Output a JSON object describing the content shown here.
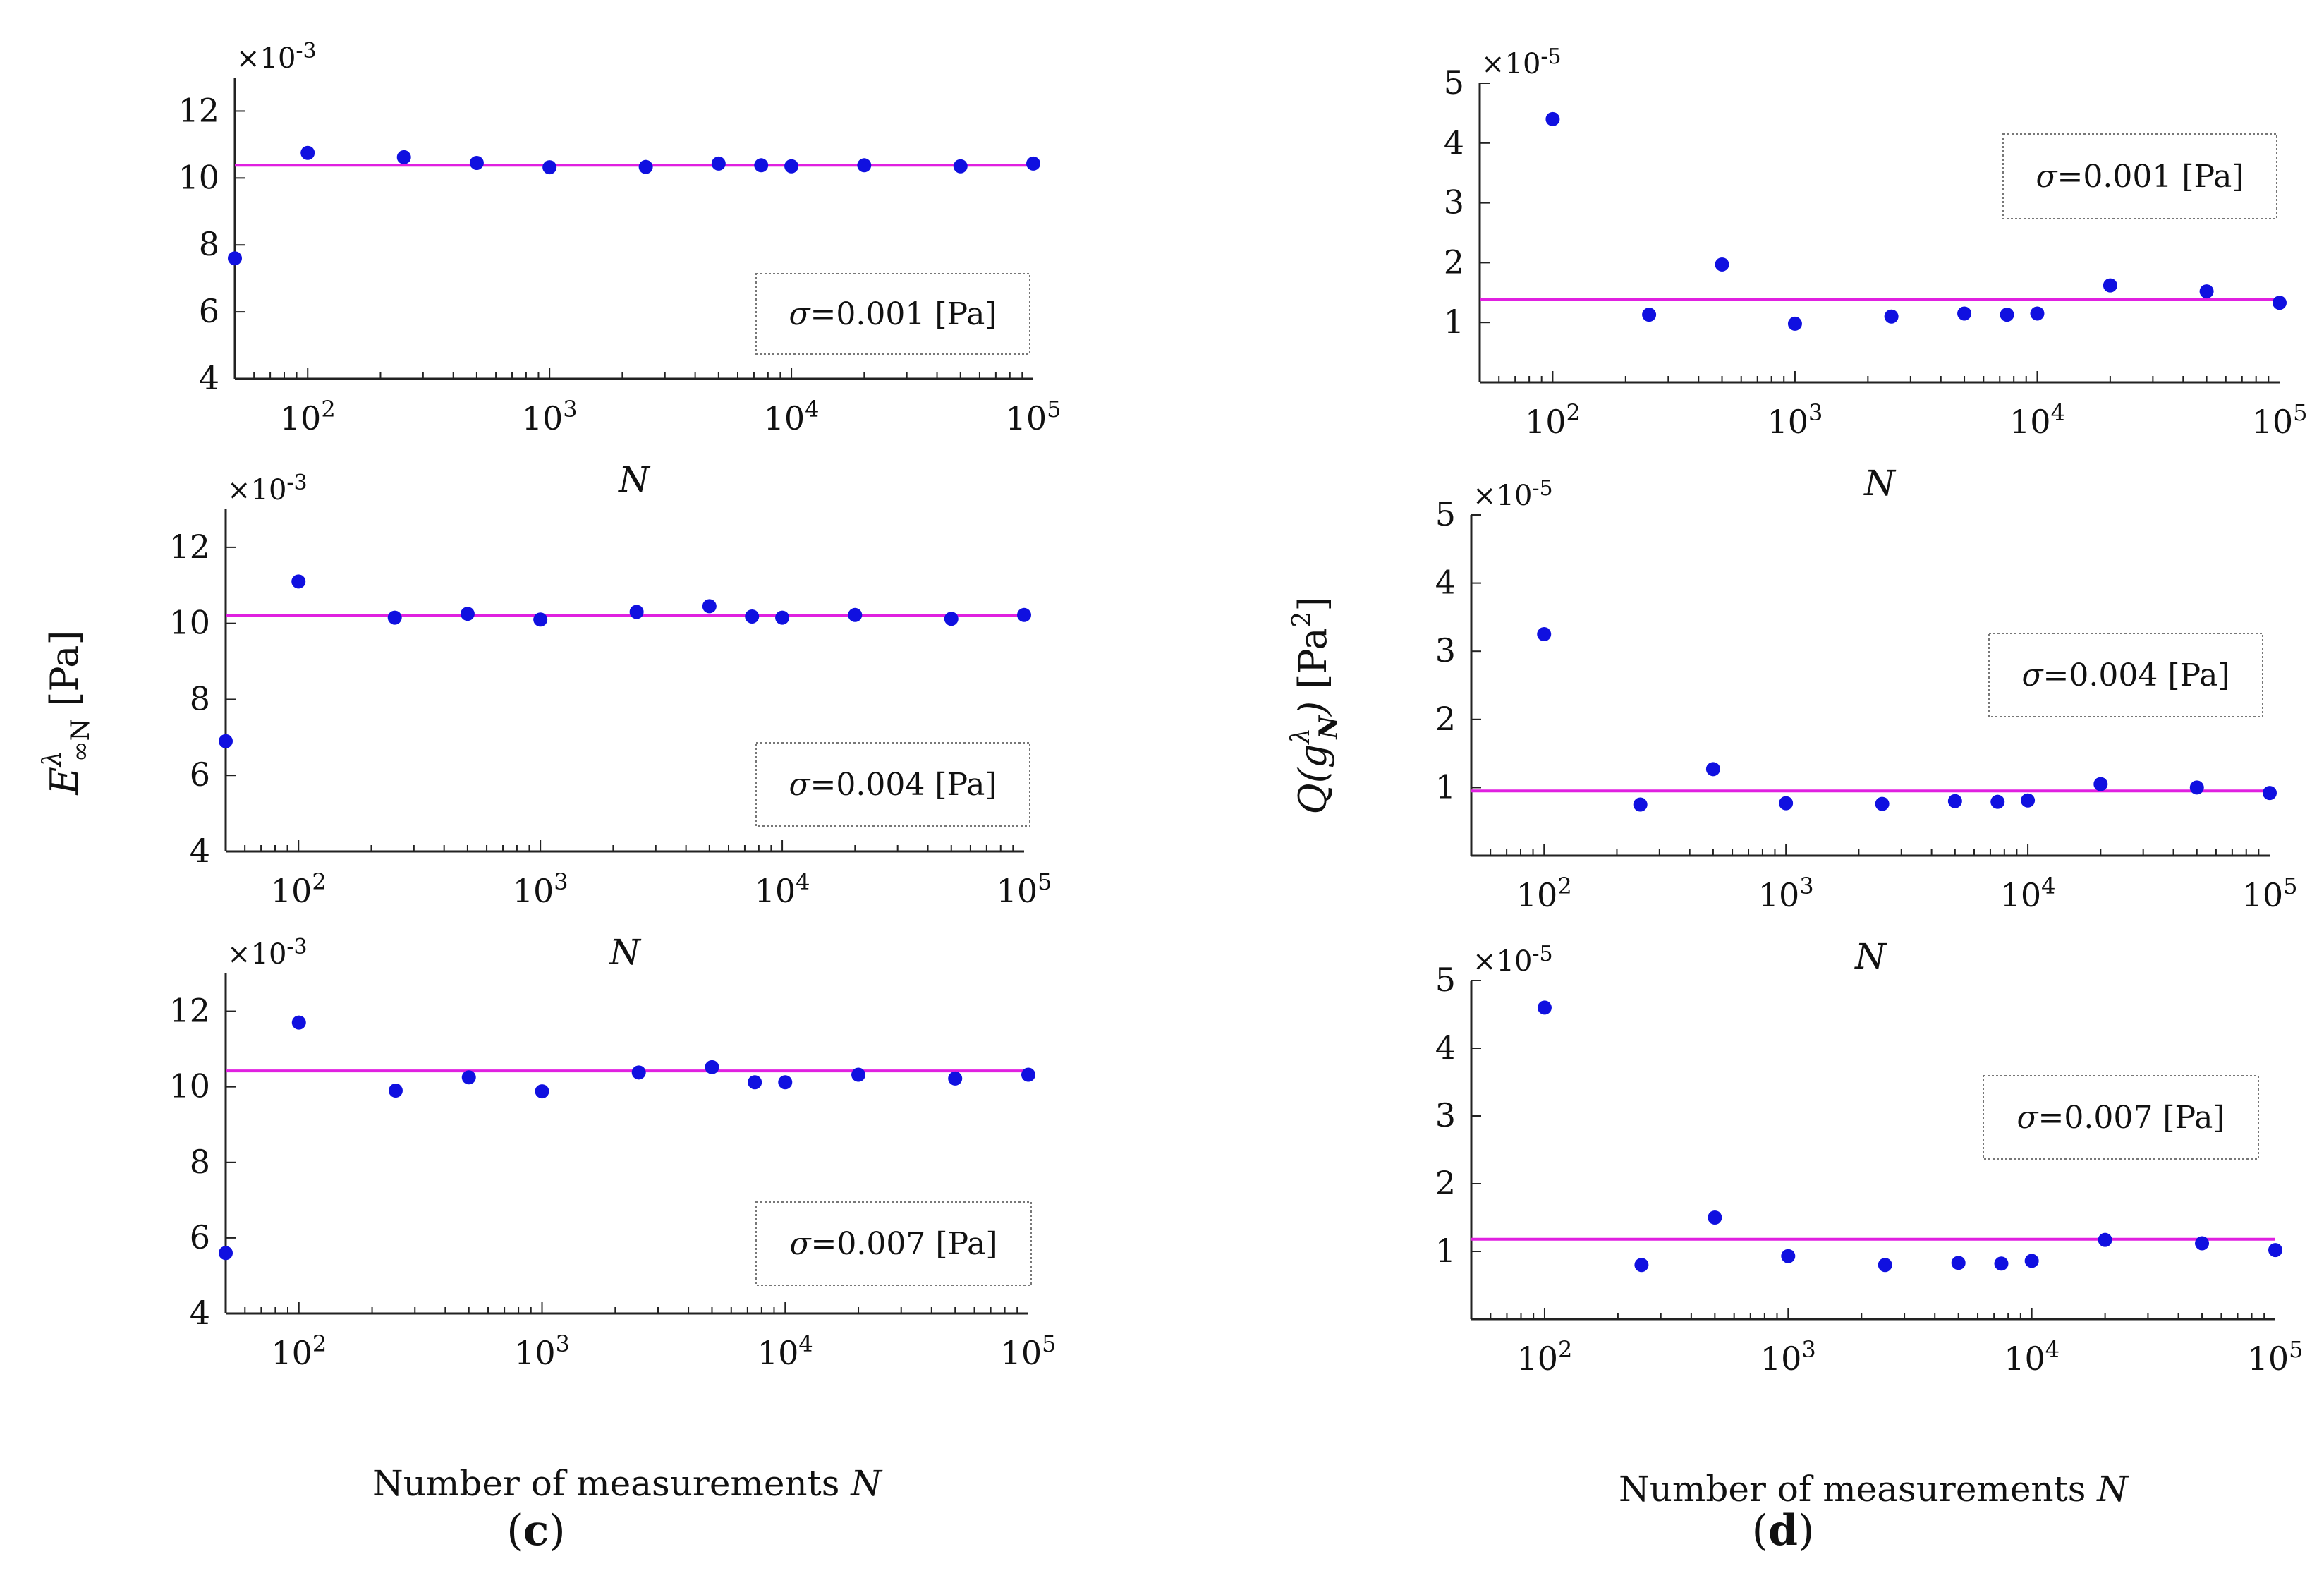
{
  "colors": {
    "point": "#1010e0",
    "reference_line": "#e020e0",
    "axis": "#222222"
  },
  "panels": [
    {
      "id": "c",
      "label": "(c)",
      "bold_letter": "c"
    },
    {
      "id": "d",
      "label": "(d)",
      "bold_letter": "d"
    }
  ],
  "shared_x_label": "Number of measurements N",
  "y_label_left": "E∞N λ [Pa]",
  "y_label_right": "Q(g_N λ) [Pa²]",
  "chart_data": [
    {
      "id": "c1",
      "type": "scatter",
      "x_scale": "log",
      "xlim": [
        50,
        100000
      ],
      "x_ticks": [
        100,
        1000,
        10000,
        100000
      ],
      "x_tick_labels": [
        "10^2",
        "10^3",
        "10^4",
        "10^5"
      ],
      "xlabel": "N",
      "ylim": [
        4,
        13
      ],
      "y_ticks": [
        4,
        6,
        8,
        10,
        12
      ],
      "y_multiplier": "×10^-3",
      "legend": "σ=0.001 [Pa]",
      "legend_position": "bottom-right",
      "reference_line": 10.38,
      "x": [
        50,
        100,
        250,
        500,
        1000,
        2500,
        5000,
        7500,
        10000,
        20000,
        50000,
        100000
      ],
      "y": [
        7.6,
        10.75,
        10.62,
        10.45,
        10.32,
        10.33,
        10.43,
        10.38,
        10.35,
        10.38,
        10.35,
        10.43
      ]
    },
    {
      "id": "c2",
      "type": "scatter",
      "x_scale": "log",
      "xlim": [
        50,
        100000
      ],
      "x_ticks": [
        100,
        1000,
        10000,
        100000
      ],
      "x_tick_labels": [
        "10^2",
        "10^3",
        "10^4",
        "10^5"
      ],
      "xlabel": "N",
      "ylim": [
        4,
        13
      ],
      "y_ticks": [
        4,
        6,
        8,
        10,
        12
      ],
      "y_multiplier": "×10^-3",
      "legend": "σ=0.004 [Pa]",
      "legend_position": "bottom-right",
      "reference_line": 10.2,
      "x": [
        50,
        100,
        250,
        500,
        1000,
        2500,
        5000,
        7500,
        10000,
        20000,
        50000,
        100000
      ],
      "y": [
        6.9,
        11.1,
        10.15,
        10.25,
        10.1,
        10.3,
        10.45,
        10.18,
        10.15,
        10.22,
        10.12,
        10.22
      ]
    },
    {
      "id": "c3",
      "type": "scatter",
      "x_scale": "log",
      "xlim": [
        50,
        100000
      ],
      "x_ticks": [
        100,
        1000,
        10000,
        100000
      ],
      "x_tick_labels": [
        "10^2",
        "10^3",
        "10^4",
        "10^5"
      ],
      "xlabel": "Number of measurements N",
      "ylim": [
        4,
        13
      ],
      "y_ticks": [
        4,
        6,
        8,
        10,
        12
      ],
      "y_multiplier": "×10^-3",
      "legend": "σ=0.007 [Pa]",
      "legend_position": "bottom-right",
      "reference_line": 10.42,
      "x": [
        50,
        100,
        250,
        500,
        1000,
        2500,
        5000,
        7500,
        10000,
        20000,
        50000,
        100000
      ],
      "y": [
        5.6,
        11.7,
        9.9,
        10.25,
        9.88,
        10.38,
        10.52,
        10.12,
        10.12,
        10.32,
        10.22,
        10.32
      ]
    },
    {
      "id": "d1",
      "type": "scatter",
      "x_scale": "log",
      "xlim": [
        50,
        100000
      ],
      "x_ticks": [
        100,
        1000,
        10000,
        100000
      ],
      "x_tick_labels": [
        "10^2",
        "10^3",
        "10^4",
        "10^5"
      ],
      "xlabel": "N",
      "ylim": [
        0,
        5
      ],
      "y_ticks": [
        1,
        2,
        3,
        4,
        5
      ],
      "y_multiplier": "×10^-5",
      "legend": "σ=0.001 [Pa]",
      "legend_position": "top-right",
      "reference_line": 1.38,
      "x": [
        100,
        250,
        500,
        1000,
        2500,
        5000,
        7500,
        10000,
        20000,
        50000,
        100000
      ],
      "y": [
        4.4,
        1.13,
        1.97,
        0.98,
        1.1,
        1.15,
        1.13,
        1.15,
        1.62,
        1.52,
        1.33
      ]
    },
    {
      "id": "d2",
      "type": "scatter",
      "x_scale": "log",
      "xlim": [
        50,
        100000
      ],
      "x_ticks": [
        100,
        1000,
        10000,
        100000
      ],
      "x_tick_labels": [
        "10^2",
        "10^3",
        "10^4",
        "10^5"
      ],
      "xlabel": "N",
      "ylim": [
        0,
        5
      ],
      "y_ticks": [
        1,
        2,
        3,
        4,
        5
      ],
      "y_multiplier": "×10^-5",
      "legend": "σ=0.004 [Pa]",
      "legend_position": "top-right",
      "reference_line": 0.95,
      "x": [
        100,
        250,
        500,
        1000,
        2500,
        5000,
        7500,
        10000,
        20000,
        50000,
        100000
      ],
      "y": [
        3.25,
        0.75,
        1.27,
        0.77,
        0.76,
        0.8,
        0.79,
        0.81,
        1.05,
        1.0,
        0.92
      ]
    },
    {
      "id": "d3",
      "type": "scatter",
      "x_scale": "log",
      "xlim": [
        50,
        100000
      ],
      "x_ticks": [
        100,
        1000,
        10000,
        100000
      ],
      "x_tick_labels": [
        "10^2",
        "10^3",
        "10^4",
        "10^5"
      ],
      "xlabel": "Number of measurements N",
      "ylim": [
        0,
        5
      ],
      "y_ticks": [
        1,
        2,
        3,
        4,
        5
      ],
      "y_multiplier": "×10^-5",
      "legend": "σ=0.007 [Pa]",
      "legend_position": "top-right",
      "reference_line": 1.18,
      "x": [
        100,
        250,
        500,
        1000,
        2500,
        5000,
        7500,
        10000,
        20000,
        50000,
        100000
      ],
      "y": [
        4.6,
        0.8,
        1.5,
        0.93,
        0.8,
        0.83,
        0.82,
        0.86,
        1.17,
        1.12,
        1.02
      ]
    }
  ]
}
